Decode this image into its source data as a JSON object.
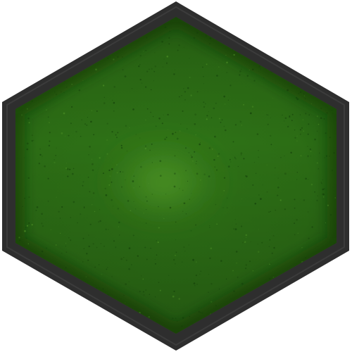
{
  "tile": {
    "icon": "hexagon-grass-tile",
    "colors": {
      "border": "#2e2e2e",
      "border_highlight": "#454545",
      "fill_dark": "#1f5a10",
      "fill_mid": "#2f7417",
      "fill_highlight": "#5aa22b",
      "speckle": "#14400a"
    }
  }
}
